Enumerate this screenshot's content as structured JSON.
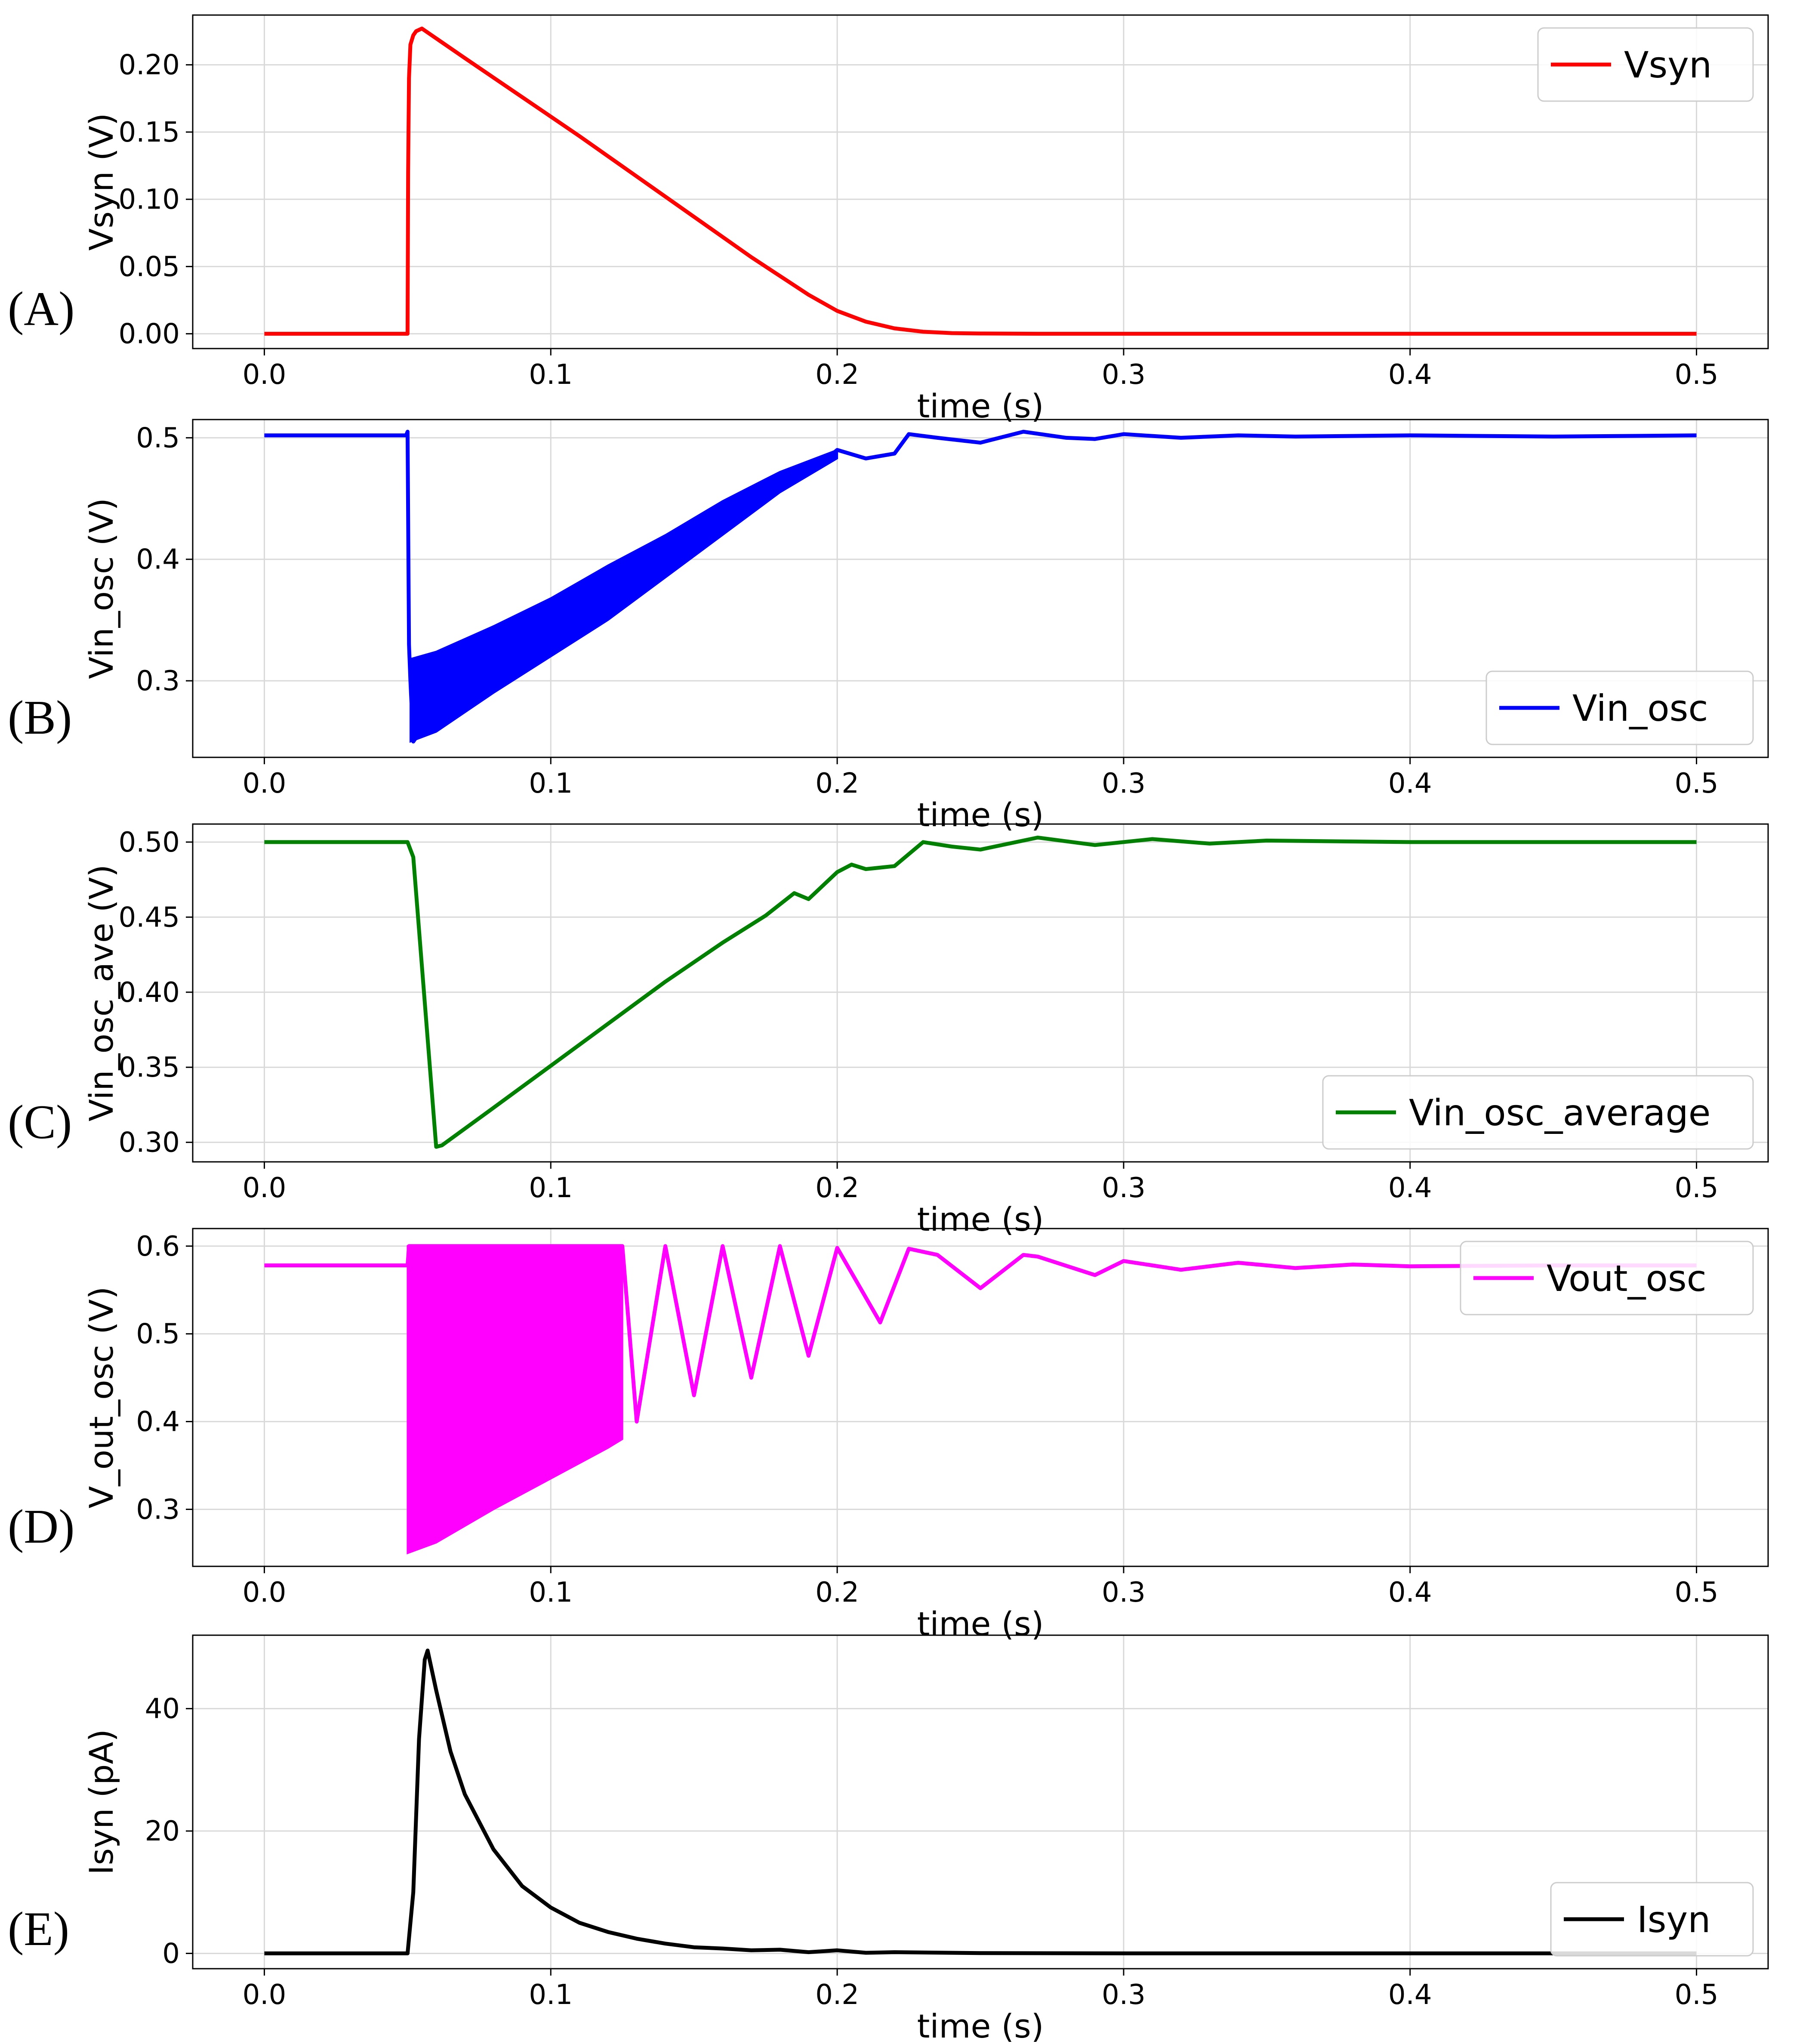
{
  "chart_data": [
    {
      "type": "line",
      "panel_label": "(A)",
      "xlabel": "time (s)",
      "ylabel": "Vsyn (V)",
      "xlim": [
        -0.025,
        0.525
      ],
      "ylim": [
        -0.011,
        0.237
      ],
      "xticks": [
        "0.0",
        "0.1",
        "0.2",
        "0.3",
        "0.4",
        "0.5"
      ],
      "yticks": [
        "0.00",
        "0.05",
        "0.10",
        "0.15",
        "0.20"
      ],
      "grid": true,
      "legend_position": "upper right",
      "series": [
        {
          "name": "Vsyn",
          "color": "#ff0000",
          "x": [
            0,
            0.05,
            0.0502,
            0.0505,
            0.051,
            0.052,
            0.053,
            0.055,
            0.07,
            0.09,
            0.11,
            0.13,
            0.15,
            0.17,
            0.18,
            0.19,
            0.2,
            0.21,
            0.22,
            0.23,
            0.24,
            0.25,
            0.27,
            0.3,
            0.5
          ],
          "y": [
            0,
            0,
            0.12,
            0.19,
            0.215,
            0.222,
            0.225,
            0.227,
            0.205,
            0.176,
            0.147,
            0.117,
            0.087,
            0.057,
            0.043,
            0.029,
            0.017,
            0.009,
            0.004,
            0.0015,
            0.0005,
            0.0002,
            0,
            0,
            0
          ]
        }
      ]
    },
    {
      "type": "line",
      "panel_label": "(B)",
      "xlabel": "time (s)",
      "ylabel": "Vin_osc (V)",
      "xlim": [
        -0.025,
        0.525
      ],
      "ylim": [
        0.237,
        0.515
      ],
      "xticks": [
        "0.0",
        "0.1",
        "0.2",
        "0.3",
        "0.4",
        "0.5"
      ],
      "yticks": [
        "0.3",
        "0.4",
        "0.5"
      ],
      "grid": true,
      "legend_position": "lower right",
      "series": [
        {
          "name": "Vin_osc",
          "color": "#0000ff",
          "x": [
            0,
            0.0495,
            0.05,
            0.0505,
            0.051,
            0.052,
            0.055,
            0.07,
            0.09,
            0.11,
            0.13,
            0.15,
            0.17,
            0.185,
            0.195,
            0.2,
            0.21,
            0.22,
            0.225,
            0.235,
            0.25,
            0.265,
            0.28,
            0.29,
            0.3,
            0.32,
            0.34,
            0.36,
            0.4,
            0.45,
            0.5
          ],
          "y": [
            0.502,
            0.502,
            0.505,
            0.33,
            0.3,
            0.25,
            0.26,
            0.29,
            0.33,
            0.37,
            0.405,
            0.43,
            0.45,
            0.465,
            0.48,
            0.49,
            0.483,
            0.487,
            0.503,
            0.5,
            0.496,
            0.505,
            0.5,
            0.499,
            0.503,
            0.5,
            0.502,
            0.501,
            0.502,
            0.501,
            0.502
          ],
          "envelope": {
            "x": [
              0.051,
              0.06,
              0.08,
              0.1,
              0.12,
              0.14,
              0.16,
              0.18,
              0.2
            ],
            "upper": [
              0.318,
              0.324,
              0.345,
              0.368,
              0.395,
              0.42,
              0.448,
              0.472,
              0.49
            ],
            "lower": [
              0.25,
              0.258,
              0.29,
              0.32,
              0.35,
              0.385,
              0.42,
              0.455,
              0.483
            ]
          }
        }
      ]
    },
    {
      "type": "line",
      "panel_label": "(C)",
      "xlabel": "time (s)",
      "ylabel": "Vin_osc_ave (V)",
      "xlim": [
        -0.025,
        0.525
      ],
      "ylim": [
        0.287,
        0.512
      ],
      "xticks": [
        "0.0",
        "0.1",
        "0.2",
        "0.3",
        "0.4",
        "0.5"
      ],
      "yticks": [
        "0.30",
        "0.35",
        "0.40",
        "0.45",
        "0.50"
      ],
      "grid": true,
      "legend_position": "lower right",
      "series": [
        {
          "name": "Vin_osc_average",
          "color": "#008000",
          "x": [
            0,
            0.05,
            0.052,
            0.06,
            0.062,
            0.08,
            0.1,
            0.12,
            0.14,
            0.16,
            0.175,
            0.185,
            0.19,
            0.2,
            0.205,
            0.21,
            0.22,
            0.23,
            0.24,
            0.25,
            0.27,
            0.29,
            0.31,
            0.33,
            0.35,
            0.4,
            0.45,
            0.5
          ],
          "y": [
            0.5,
            0.5,
            0.49,
            0.297,
            0.298,
            0.323,
            0.351,
            0.379,
            0.407,
            0.433,
            0.451,
            0.466,
            0.462,
            0.48,
            0.485,
            0.482,
            0.484,
            0.5,
            0.497,
            0.495,
            0.503,
            0.498,
            0.502,
            0.499,
            0.501,
            0.5,
            0.5,
            0.5
          ]
        }
      ]
    },
    {
      "type": "line",
      "panel_label": "(D)",
      "xlabel": "time (s)",
      "ylabel": "V_out_osc (V)",
      "xlim": [
        -0.025,
        0.525
      ],
      "ylim": [
        0.235,
        0.62
      ],
      "xticks": [
        "0.0",
        "0.1",
        "0.2",
        "0.3",
        "0.4",
        "0.5"
      ],
      "yticks": [
        "0.3",
        "0.4",
        "0.5",
        "0.6"
      ],
      "grid": true,
      "legend_position": "upper right",
      "series": [
        {
          "name": "Vout_osc",
          "color": "#ff00ff",
          "x": [
            0,
            0.05,
            0.0505,
            0.125,
            0.13,
            0.14,
            0.15,
            0.16,
            0.17,
            0.18,
            0.19,
            0.2,
            0.215,
            0.225,
            0.235,
            0.25,
            0.265,
            0.27,
            0.29,
            0.3,
            0.32,
            0.34,
            0.36,
            0.38,
            0.4,
            0.45,
            0.5
          ],
          "y": [
            0.578,
            0.578,
            0.6,
            0.6,
            0.4,
            0.6,
            0.43,
            0.6,
            0.45,
            0.6,
            0.475,
            0.598,
            0.513,
            0.597,
            0.59,
            0.552,
            0.59,
            0.588,
            0.567,
            0.583,
            0.573,
            0.581,
            0.575,
            0.579,
            0.577,
            0.578,
            0.578
          ],
          "envelope": {
            "x": [
              0.05,
              0.06,
              0.08,
              0.1,
              0.12,
              0.125
            ],
            "upper": [
              0.6,
              0.6,
              0.6,
              0.6,
              0.6,
              0.6
            ],
            "lower": [
              0.25,
              0.262,
              0.3,
              0.335,
              0.37,
              0.38
            ]
          }
        }
      ]
    },
    {
      "type": "line",
      "panel_label": "(E)",
      "xlabel": "time (s)",
      "ylabel": "Isyn (pA)",
      "xlim": [
        -0.025,
        0.525
      ],
      "ylim": [
        -2.5,
        52.0
      ],
      "xticks": [
        "0.0",
        "0.1",
        "0.2",
        "0.3",
        "0.4",
        "0.5"
      ],
      "yticks": [
        "0",
        "20",
        "40"
      ],
      "grid": true,
      "legend_position": "lower right",
      "series": [
        {
          "name": "Isyn",
          "color": "#000000",
          "x": [
            0,
            0.05,
            0.052,
            0.054,
            0.056,
            0.057,
            0.06,
            0.065,
            0.07,
            0.08,
            0.09,
            0.1,
            0.11,
            0.12,
            0.13,
            0.14,
            0.15,
            0.16,
            0.17,
            0.18,
            0.19,
            0.2,
            0.21,
            0.22,
            0.25,
            0.3,
            0.4,
            0.5
          ],
          "y": [
            0,
            0,
            10,
            35,
            48,
            49.5,
            43,
            33,
            26,
            17,
            11,
            7.5,
            5,
            3.5,
            2.4,
            1.6,
            1,
            0.8,
            0.5,
            0.6,
            0.2,
            0.5,
            0.1,
            0.2,
            0.05,
            0,
            0,
            0
          ]
        }
      ]
    }
  ]
}
